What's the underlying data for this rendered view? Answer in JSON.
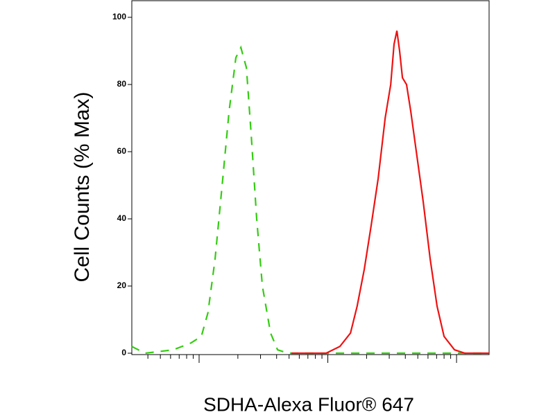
{
  "chart_data": {
    "type": "line",
    "x_label": "SDHA-Alexa Fluor® 647",
    "y_label": "Cell Counts (% Max)",
    "xscale": "log",
    "xlim": [
      3,
      1790
    ],
    "xticks": [
      4,
      5,
      6,
      7,
      8,
      9,
      10,
      20,
      30,
      40,
      50,
      60,
      70,
      80,
      90,
      100,
      200,
      300,
      400,
      500,
      600,
      700,
      800,
      900,
      1000
    ],
    "ylim": [
      0,
      100
    ],
    "yticks": [
      0,
      20,
      40,
      60,
      80,
      100
    ],
    "series": [
      {
        "color": "#33cc11",
        "linestyle": "dashed",
        "x": [
          3.0,
          3.8,
          6.3,
          8.6,
          10.4,
          11.7,
          13.3,
          15.1,
          17.1,
          19.3,
          21.1,
          23.3,
          25.4,
          28.0,
          31.0,
          35.9,
          40.7,
          49.0,
          140,
          487,
          1790
        ],
        "values": [
          2,
          0,
          1,
          3,
          5,
          12,
          28,
          50,
          72,
          88,
          91,
          85,
          65,
          40,
          20,
          6,
          1,
          0,
          0,
          0,
          0
        ]
      },
      {
        "color": "#ee1111",
        "linestyle": "solid",
        "x": [
          52.1,
          97,
          124,
          150,
          169,
          192,
          217,
          246,
          279,
          308,
          327,
          344,
          361,
          380,
          409,
          441,
          487,
          551,
          624,
          706,
          800,
          964,
          1161,
          1790
        ],
        "values": [
          0,
          0,
          2,
          6,
          14,
          25,
          38,
          52,
          70,
          80,
          92,
          96,
          90,
          82,
          80,
          72,
          60,
          45,
          28,
          14,
          5,
          1,
          0,
          0
        ]
      }
    ]
  }
}
